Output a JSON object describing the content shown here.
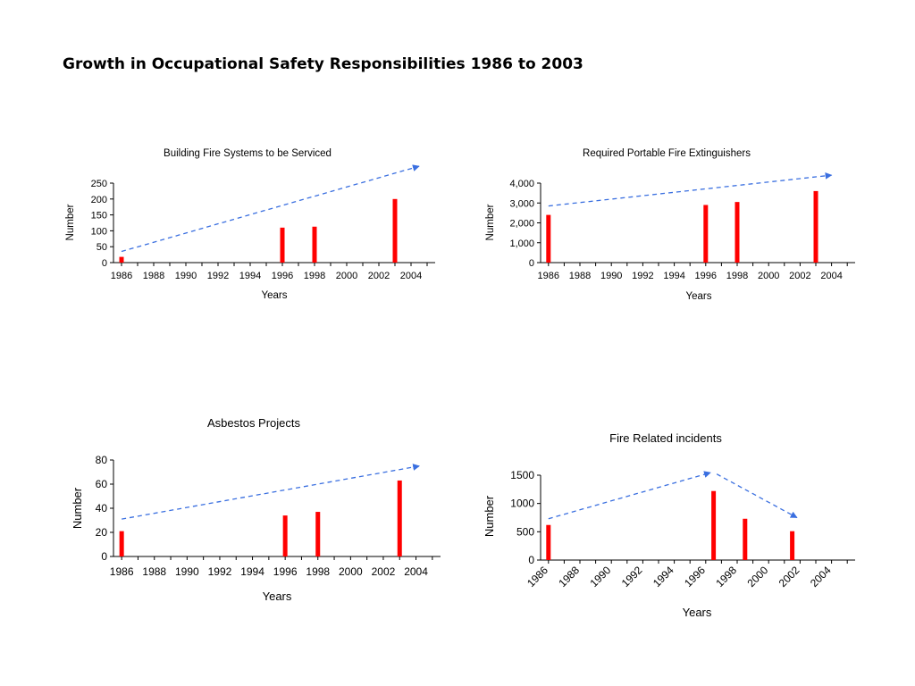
{
  "page": {
    "title": "Growth in Occupational Safety Responsibilities 1986 to 2003"
  },
  "colors": {
    "bar": "#ff0000",
    "trend_arrow": "#3a6fe0",
    "axis": "#000000"
  },
  "chart_data": [
    {
      "type": "bar",
      "title": "Building Fire Systems to be Serviced",
      "xlabel": "Years",
      "ylabel": "Number",
      "xlim": [
        1985.5,
        2005.5
      ],
      "ylim": [
        0,
        250
      ],
      "yticks": [
        0,
        50,
        100,
        150,
        200,
        250
      ],
      "ytick_labels": [
        "0",
        "50",
        "100",
        "150",
        "200",
        "250"
      ],
      "xticks": [
        1986,
        1988,
        1990,
        1992,
        1994,
        1996,
        1998,
        2000,
        2002,
        2004
      ],
      "xtick_labels": [
        "1986",
        "1988",
        "1990",
        "1992",
        "1994",
        "1996",
        "1998",
        "2000",
        "2002",
        "2004"
      ],
      "x_label_rotated": false,
      "x": [
        1986,
        1996,
        1998,
        2003
      ],
      "values": [
        18,
        110,
        113,
        200
      ],
      "trend": [
        {
          "from": [
            1986,
            35
          ],
          "to": [
            2004.5,
            303
          ]
        }
      ],
      "grid": false
    },
    {
      "type": "bar",
      "title": "Required Portable Fire Extinguishers",
      "xlabel": "Years",
      "ylabel": "Number",
      "xlim": [
        1985.5,
        2005.5
      ],
      "ylim": [
        0,
        4000
      ],
      "yticks": [
        0,
        1000,
        2000,
        3000,
        4000
      ],
      "ytick_labels": [
        "0",
        "1,000",
        "2,000",
        "3,000",
        "4,000"
      ],
      "xticks": [
        1986,
        1988,
        1990,
        1992,
        1994,
        1996,
        1998,
        2000,
        2002,
        2004
      ],
      "xtick_labels": [
        "1986",
        "1988",
        "1990",
        "1992",
        "1994",
        "1996",
        "1998",
        "2000",
        "2002",
        "2004"
      ],
      "x_label_rotated": false,
      "x": [
        1986,
        1996,
        1998,
        2003
      ],
      "values": [
        2400,
        2900,
        3050,
        3600
      ],
      "trend": [
        {
          "from": [
            1986,
            2850
          ],
          "to": [
            2004,
            4400
          ]
        }
      ],
      "grid": false
    },
    {
      "type": "bar",
      "title": "Asbestos Projects",
      "xlabel": "Years",
      "ylabel": "Number",
      "xlim": [
        1985.5,
        2005.5
      ],
      "ylim": [
        0,
        80
      ],
      "yticks": [
        0,
        20,
        40,
        60,
        80
      ],
      "ytick_labels": [
        "0",
        "20",
        "40",
        "60",
        "80"
      ],
      "xticks": [
        1986,
        1988,
        1990,
        1992,
        1994,
        1996,
        1998,
        2000,
        2002,
        2004
      ],
      "xtick_labels": [
        "1986",
        "1988",
        "1990",
        "1992",
        "1994",
        "1996",
        "1998",
        "2000",
        "2002",
        "2004"
      ],
      "x_label_rotated": false,
      "x": [
        1986,
        1996,
        1998,
        2003
      ],
      "values": [
        21,
        34,
        37,
        63
      ],
      "trend": [
        {
          "from": [
            1986,
            31
          ],
          "to": [
            2004.2,
            75
          ]
        }
      ],
      "grid": false
    },
    {
      "type": "bar",
      "title": "Fire Related incidents",
      "xlabel": "Years",
      "ylabel": "Number",
      "xlim": [
        1985.5,
        2005.5
      ],
      "ylim": [
        0,
        1500
      ],
      "yticks": [
        0,
        500,
        1000,
        1500
      ],
      "ytick_labels": [
        "0",
        "500",
        "1000",
        "1500"
      ],
      "xticks": [
        1986,
        1988,
        1990,
        1992,
        1994,
        1996,
        1998,
        2000,
        2002,
        2004
      ],
      "xtick_labels": [
        "1986",
        "1988",
        "1990",
        "1992",
        "1994",
        "1996",
        "1998",
        "2000",
        "2002",
        "2004"
      ],
      "x_label_rotated": true,
      "x": [
        1986,
        1996.5,
        1998.5,
        2001.5
      ],
      "values": [
        620,
        1220,
        730,
        510
      ],
      "trend": [
        {
          "from": [
            1986,
            730
          ],
          "to": [
            1996.3,
            1545
          ]
        },
        {
          "from": [
            1996.7,
            1520
          ],
          "to": [
            2001.8,
            750
          ]
        }
      ],
      "grid": false
    }
  ]
}
